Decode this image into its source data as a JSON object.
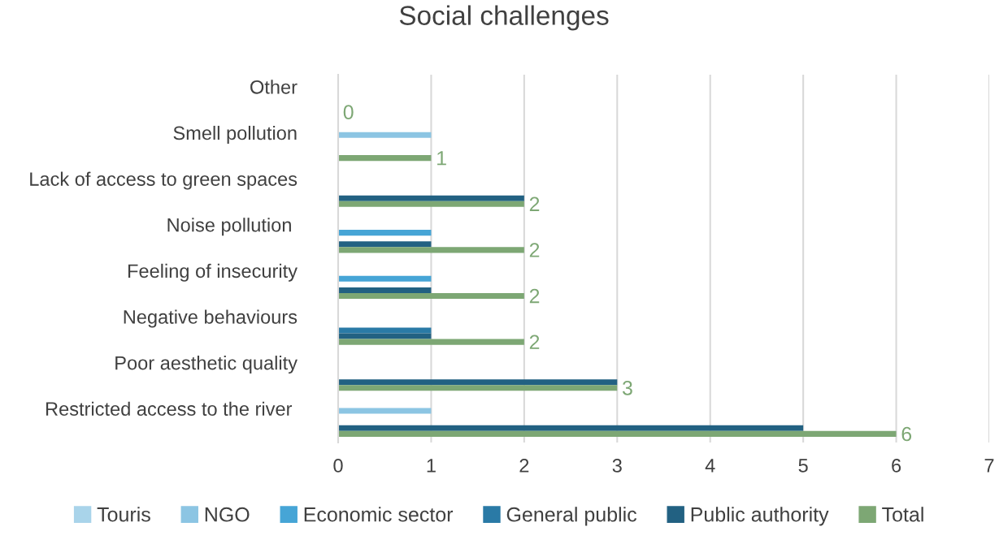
{
  "chart_data": {
    "type": "bar",
    "orientation": "horizontal",
    "title": "Social challenges",
    "categories": [
      "Other",
      "Smell pollution",
      "Lack of access to green spaces",
      "Noise pollution ",
      "Feeling of insecurity",
      "Negative behaviours",
      "Poor aesthetic quality",
      "Restricted access to the river "
    ],
    "series": [
      {
        "name": "Touris",
        "color": "#a9d4ea",
        "values": [
          0,
          0,
          0,
          0,
          0,
          0,
          0,
          0
        ]
      },
      {
        "name": "NGO",
        "color": "#8cc5e3",
        "values": [
          0,
          1,
          0,
          0,
          0,
          0,
          0,
          1
        ]
      },
      {
        "name": "Economic sector",
        "color": "#46a5d6",
        "values": [
          0,
          0,
          0,
          1,
          1,
          0,
          0,
          0
        ]
      },
      {
        "name": "General public",
        "color": "#2a7aa6",
        "values": [
          0,
          0,
          0,
          0,
          0,
          1,
          0,
          0
        ]
      },
      {
        "name": "Public authority",
        "color": "#226182",
        "values": [
          0,
          0,
          2,
          1,
          1,
          1,
          3,
          5
        ]
      },
      {
        "name": "Total",
        "color": "#7da774",
        "values": [
          0,
          1,
          2,
          2,
          2,
          2,
          3,
          6
        ],
        "value_labels": [
          "0",
          "1",
          "2",
          "2",
          "2",
          "2",
          "3",
          "6"
        ]
      }
    ],
    "xlim": [
      0,
      7
    ],
    "xticks": [
      0,
      1,
      2,
      3,
      4,
      5,
      6,
      7
    ],
    "grid": "x",
    "legend": "bottom"
  }
}
